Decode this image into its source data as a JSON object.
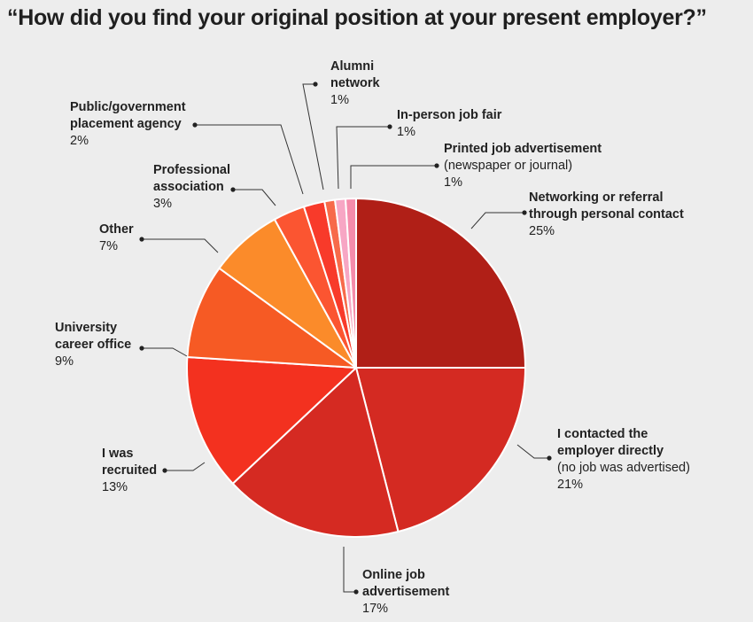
{
  "chart_data": {
    "type": "pie",
    "title": "“How did you find your original position at your present employer?”",
    "slices": [
      {
        "label": "Networking or referral\nthrough personal contact",
        "note": "",
        "value": 25,
        "value_label": "25%",
        "color": "#b01f17"
      },
      {
        "label": "I contacted the\nemployer directly",
        "note": "(no job was advertised)",
        "value": 21,
        "value_label": "21%",
        "color": "#d42a22"
      },
      {
        "label": "Online job\nadvertisement",
        "note": "",
        "value": 17,
        "value_label": "17%",
        "color": "#d52a22"
      },
      {
        "label": "I was\nrecruited",
        "note": "",
        "value": 13,
        "value_label": "13%",
        "color": "#f3311f"
      },
      {
        "label": "University\ncareer office",
        "note": "",
        "value": 9,
        "value_label": "9%",
        "color": "#f65a24"
      },
      {
        "label": "Other",
        "note": "",
        "value": 7,
        "value_label": "7%",
        "color": "#fb8b2a"
      },
      {
        "label": "Professional\nassociation",
        "note": "",
        "value": 3,
        "value_label": "3%",
        "color": "#fb5531"
      },
      {
        "label": "Public/government\nplacement agency",
        "note": "",
        "value": 2,
        "value_label": "2%",
        "color": "#f83a2a"
      },
      {
        "label": "Alumni\nnetwork",
        "note": "",
        "value": 1,
        "value_label": "1%",
        "color": "#f76a4a"
      },
      {
        "label": "In-person job fair",
        "note": "",
        "value": 1,
        "value_label": "1%",
        "color": "#f7a6c4"
      },
      {
        "label": "Printed job advertisement",
        "note": "(newspaper or journal)",
        "value": 1,
        "value_label": "1%",
        "color": "#f58cab"
      }
    ]
  }
}
